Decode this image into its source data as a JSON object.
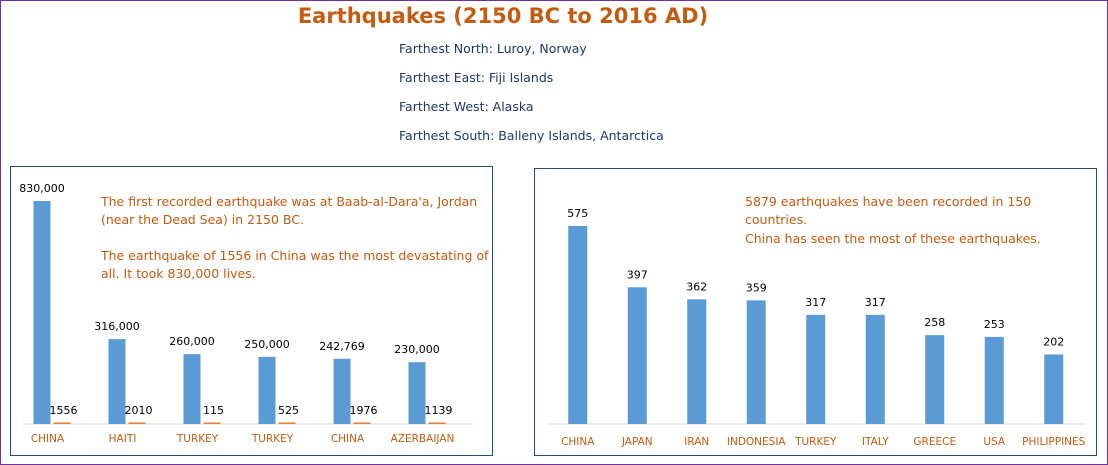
{
  "title": "Earthquakes (2150 BC to 2016 AD)",
  "facts": [
    "Farthest North: Luroy, Norway",
    "Farthest East: Fiji Islands",
    "Farthest West: Alaska",
    "Farthest South: Balleny Islands, Antarctica"
  ],
  "left_notes": {
    "line1": "The first recorded earthquake was at Baab-al-Dara'a, Jordan",
    "line2": "(near the Dead Sea) in 2150 BC.",
    "line3": "The earthquake of 1556 in China was the most devastating of",
    "line4": "all. It took 830,000 lives."
  },
  "right_notes": {
    "line1": "5879 earthquakes have been recorded in 150 countries.",
    "line2": "China has seen the most of these earthquakes."
  },
  "colors": {
    "bar_blue": "#5b9bd5",
    "bar_orange": "#ed7d31",
    "label_orange": "#c55a11",
    "fact_text": "#1f3864"
  },
  "chart_data": [
    {
      "type": "bar",
      "categories": [
        "CHINA",
        "HAITI",
        "TURKEY",
        "TURKEY",
        "CHINA",
        "AZERBAIJAN"
      ],
      "series": [
        {
          "values": [
            830000,
            316000,
            260000,
            250000,
            242769,
            230000
          ],
          "labels": [
            "830,000",
            "316,000",
            "260,000",
            "250,000",
            "242,769",
            "230,000"
          ]
        },
        {
          "values": [
            1556,
            2010,
            115,
            525,
            1976,
            1139
          ],
          "labels": [
            "1556",
            "2010",
            "115",
            "525",
            "1976",
            "1139"
          ]
        }
      ]
    },
    {
      "type": "bar",
      "categories": [
        "CHINA",
        "JAPAN",
        "IRAN",
        "INDONESIA",
        "TURKEY",
        "ITALY",
        "GREECE",
        "USA",
        "PHILIPPINES"
      ],
      "values": [
        575,
        397,
        362,
        359,
        317,
        317,
        258,
        253,
        202
      ],
      "labels": [
        "575",
        "397",
        "362",
        "359",
        "317",
        "317",
        "258",
        "253",
        "202"
      ]
    }
  ]
}
